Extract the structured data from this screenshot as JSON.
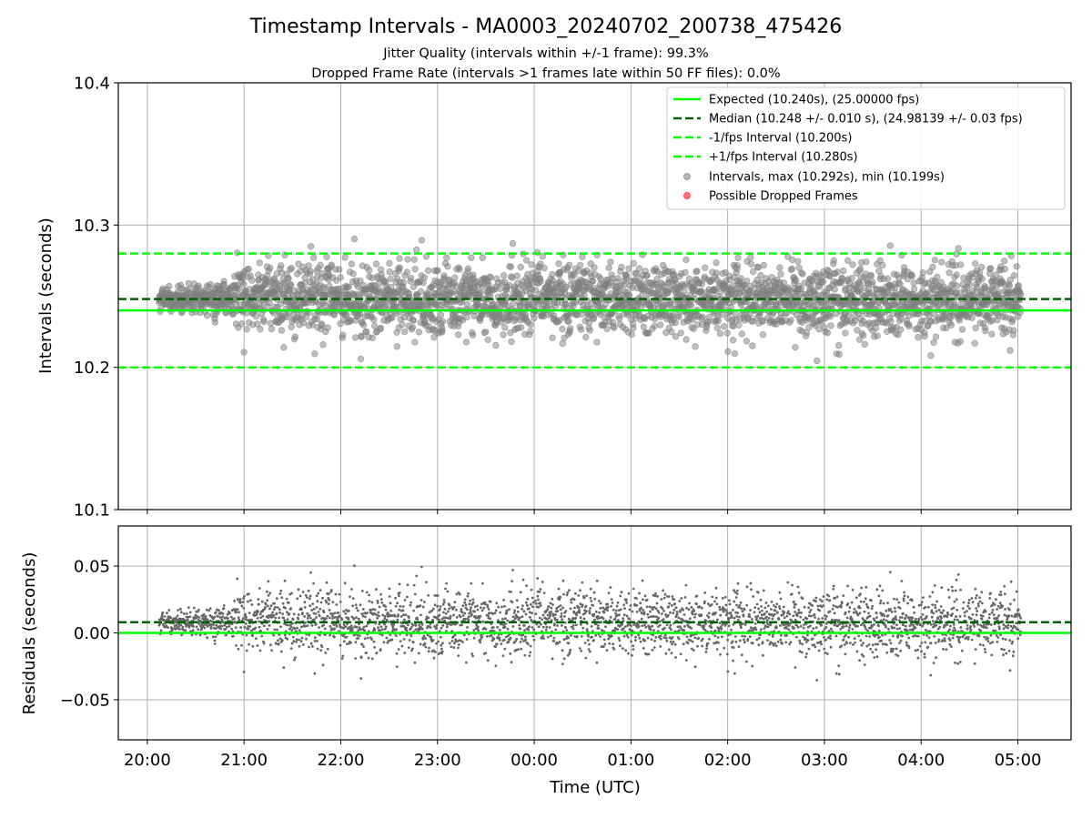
{
  "chart_data": [
    {
      "type": "scatter",
      "title": "Timestamp Intervals - MA0003_20240702_200738_475426",
      "subtitle_lines": [
        "Jitter Quality (intervals within +/-1 frame): 99.3%",
        "Dropped Frame Rate (intervals >1 frames late within 50 FF files): 0.0%"
      ],
      "ylabel": "Intervals (seconds)",
      "ylim": [
        10.1,
        10.4
      ],
      "xlim": [
        -0.3,
        9.55
      ],
      "x_ticks": [
        0,
        1,
        2,
        3,
        4,
        5,
        6,
        7,
        8,
        9
      ],
      "x_tick_labels": [
        "20:00",
        "21:00",
        "22:00",
        "23:00",
        "00:00",
        "01:00",
        "02:00",
        "03:00",
        "04:00",
        "05:00"
      ],
      "y_ticks": [
        10.1,
        10.2,
        10.3,
        10.4
      ],
      "y_tick_labels": [
        "10.1",
        "10.2",
        "10.3",
        "10.4"
      ],
      "grid": true,
      "legend_position": "top-right",
      "x_data_start": 0.12,
      "x_data_end": 9.03,
      "median_interval": 10.248,
      "lines": [
        {
          "name": "Expected (10.240s), (25.00000 fps)",
          "value": 10.24,
          "style": "solid",
          "color": "#00ff00"
        },
        {
          "name": "Median (10.248 +/- 0.010 s), (24.98139 +/- 0.03 fps)",
          "value": 10.248,
          "style": "dashed",
          "color": "#006400"
        },
        {
          "name": "-1/fps Interval (10.200s)",
          "value": 10.2,
          "style": "dashed",
          "color": "#00ff00"
        },
        {
          "name": "+1/fps Interval (10.280s)",
          "value": 10.28,
          "style": "dashed",
          "color": "#00ff00"
        }
      ],
      "series": [
        {
          "name": "Intervals, max (10.292s), min (10.199s)",
          "marker": "circle",
          "color": "#808080",
          "max": 10.292,
          "min": 10.199,
          "approx_points": 3150
        },
        {
          "name": "Possible Dropped Frames",
          "marker": "circle",
          "color": "#ff0000",
          "values": []
        }
      ]
    },
    {
      "type": "scatter",
      "xlabel": "Time (UTC)",
      "ylabel": "Residuals (seconds)",
      "ylim": [
        -0.08,
        0.08
      ],
      "y_ticks": [
        -0.05,
        0.0,
        0.05
      ],
      "y_tick_labels": [
        "−0.05",
        "0.00",
        "0.05"
      ],
      "x_ticks": [
        0,
        1,
        2,
        3,
        4,
        5,
        6,
        7,
        8,
        9
      ],
      "x_tick_labels": [
        "20:00",
        "21:00",
        "22:00",
        "23:00",
        "00:00",
        "01:00",
        "02:00",
        "03:00",
        "04:00",
        "05:00"
      ],
      "grid": true,
      "lines": [
        {
          "value": 0.0,
          "style": "solid",
          "color": "#00ff00"
        },
        {
          "value": 0.008,
          "style": "dashed",
          "color": "#006400"
        }
      ],
      "series": [
        {
          "marker": "dot",
          "color": "#666666",
          "max": 0.052,
          "min": -0.041
        }
      ]
    }
  ]
}
